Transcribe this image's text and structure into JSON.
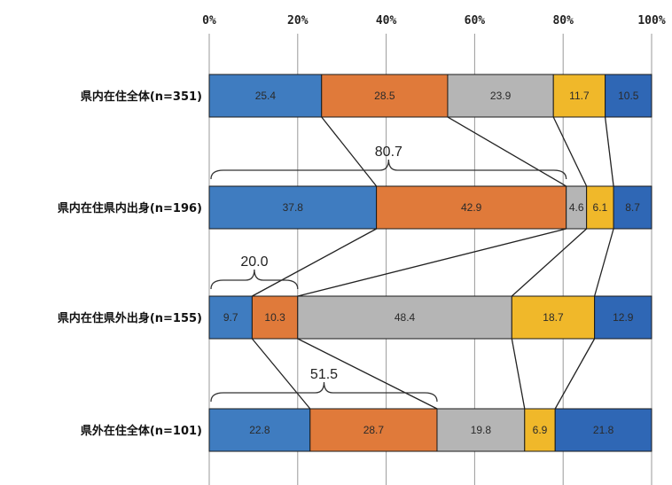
{
  "chart_data": {
    "type": "bar",
    "orientation": "horizontal",
    "stacked": true,
    "percent_stacked": true,
    "x_ticks": [
      "0%",
      "20%",
      "40%",
      "60%",
      "80%",
      "100%"
    ],
    "xlim": [
      0,
      100
    ],
    "grid": true,
    "colors": [
      "#3f7cc0",
      "#e07a3a",
      "#b5b5b5",
      "#f0b82a",
      "#2f67b5"
    ],
    "categories": [
      "県内在住全体(n=351)",
      "県内在住県内出身(n=196)",
      "県内在住県外出身(n=155)",
      "県外在住全体(n=101)"
    ],
    "series": [
      {
        "values": [
          25.4,
          37.8,
          9.7,
          22.8
        ]
      },
      {
        "values": [
          28.5,
          42.9,
          10.3,
          28.7
        ]
      },
      {
        "values": [
          23.9,
          4.6,
          48.4,
          19.8
        ]
      },
      {
        "values": [
          11.7,
          6.1,
          18.7,
          6.9
        ]
      },
      {
        "values": [
          10.5,
          8.7,
          12.9,
          21.8
        ]
      }
    ],
    "annotations": [
      {
        "text": "80.7",
        "bar": 1,
        "from": 0,
        "to": 80.7
      },
      {
        "text": "20.0",
        "bar": 2,
        "from": 0,
        "to": 20.0
      },
      {
        "text": "51.5",
        "bar": 3,
        "from": 0,
        "to": 51.5
      }
    ]
  }
}
